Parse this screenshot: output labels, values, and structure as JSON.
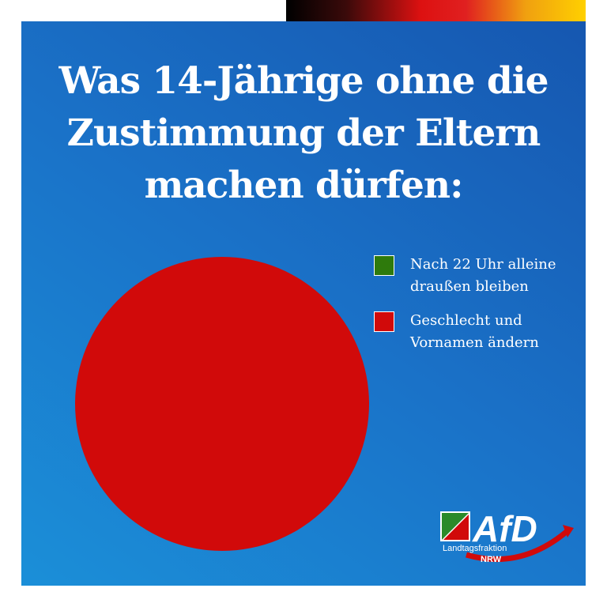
{
  "chart_data": {
    "type": "pie",
    "title": "Was 14-Jährige ohne die Zustimmung der Eltern machen dürfen:",
    "categories": [
      "Nach 22 Uhr alleine draußen bleiben",
      "Geschlecht und Vornamen ändern"
    ],
    "values": [
      0,
      100
    ],
    "colors": [
      "#2e7a0c",
      "#d10a0a"
    ],
    "legend": "right"
  },
  "logo": {
    "text": "AfD",
    "subtitle": "Landtagsfraktion",
    "region": "NRW"
  }
}
